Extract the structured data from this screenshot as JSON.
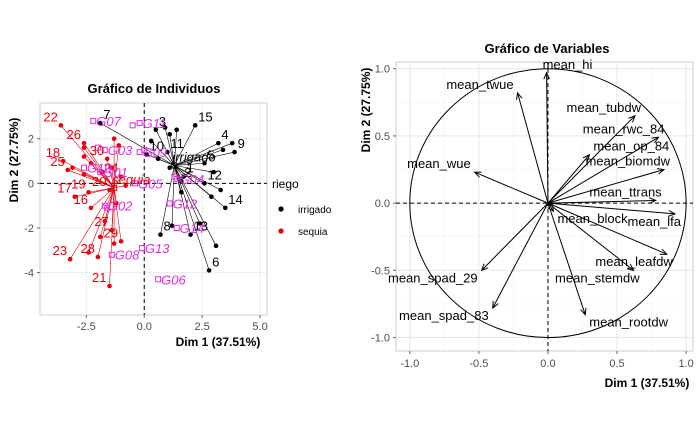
{
  "chart_data": [
    {
      "type": "scatter",
      "title": "Gráfico de Individuos",
      "xlabel": "Dim 1 (37.51%)",
      "ylabel": "Dim 2 (27.75%)",
      "xlim": [
        -4.5,
        5.3
      ],
      "ylim": [
        -5.9,
        3.6
      ],
      "xticks": [
        -2.5,
        0.0,
        2.5,
        5.0
      ],
      "xtick_labels": [
        "-2.5",
        "0.0",
        "2.5",
        "5.0"
      ],
      "yticks": [
        -4,
        -2,
        0,
        2
      ],
      "ytick_labels": [
        "-4",
        "-2",
        "0",
        "2"
      ],
      "grid": true,
      "legend": {
        "title": "riego",
        "placement": "right",
        "entries": [
          {
            "label": "irrigado",
            "color": "#000000"
          },
          {
            "label": "sequia",
            "color": "#e8000b"
          }
        ]
      },
      "irrigado": [
        {
          "label": "1",
          "x": 1.7,
          "y": 0.3
        },
        {
          "label": "2",
          "x": 1.6,
          "y": 0.1
        },
        {
          "label": "3",
          "x": 0.5,
          "y": 2.4
        },
        {
          "label": "4",
          "x": 3.2,
          "y": 1.8
        },
        {
          "label": "5",
          "x": 2.6,
          "y": 0.9
        },
        {
          "label": "6",
          "x": 2.8,
          "y": -3.9
        },
        {
          "label": "7",
          "x": -1.9,
          "y": 2.7
        },
        {
          "label": "8",
          "x": 0.7,
          "y": -2.3
        },
        {
          "label": "9",
          "x": 3.9,
          "y": 1.4
        },
        {
          "label": "10",
          "x": 0.1,
          "y": 1.3
        },
        {
          "label": "11",
          "x": 1.0,
          "y": 1.4
        },
        {
          "label": "12",
          "x": 2.6,
          "y": 0.0
        },
        {
          "label": "13",
          "x": 2.0,
          "y": -2.3
        },
        {
          "label": "14",
          "x": 3.5,
          "y": -1.1
        },
        {
          "label": "15",
          "x": 2.2,
          "y": 2.6
        },
        {
          "label": "",
          "x": 1.4,
          "y": 2.4
        },
        {
          "label": "",
          "x": 1.1,
          "y": 2.2
        },
        {
          "label": "",
          "x": 0.6,
          "y": 1.1
        },
        {
          "label": "",
          "x": 3.4,
          "y": 1.5
        },
        {
          "label": "",
          "x": 3.8,
          "y": 1.8
        },
        {
          "label": "",
          "x": 3.0,
          "y": 0.5
        },
        {
          "label": "",
          "x": 3.3,
          "y": -0.3
        },
        {
          "label": "",
          "x": 2.4,
          "y": -1.8
        },
        {
          "label": "",
          "x": 1.2,
          "y": -1.9
        },
        {
          "label": "",
          "x": 1.1,
          "y": 0.7
        },
        {
          "label": "",
          "x": 1.6,
          "y": -0.4
        },
        {
          "label": "",
          "x": 3.1,
          "y": -2.8
        },
        {
          "label": "",
          "x": 0.3,
          "y": 1.9
        },
        {
          "label": "",
          "x": 2.9,
          "y": -0.6
        },
        {
          "label": "",
          "x": 0.9,
          "y": 2.5
        }
      ],
      "sequia": [
        {
          "label": "16",
          "x": -2.3,
          "y": -1.1
        },
        {
          "label": "17",
          "x": -3.0,
          "y": -0.6
        },
        {
          "label": "18",
          "x": -3.5,
          "y": 1.0
        },
        {
          "label": "19",
          "x": -2.4,
          "y": -0.4
        },
        {
          "label": "20",
          "x": -1.5,
          "y": -0.3
        },
        {
          "label": "21",
          "x": -1.5,
          "y": -4.6
        },
        {
          "label": "22",
          "x": -3.6,
          "y": 2.6
        },
        {
          "label": "23",
          "x": -3.2,
          "y": -3.4
        },
        {
          "label": "24",
          "x": -1.0,
          "y": 0.3
        },
        {
          "label": "25",
          "x": -3.3,
          "y": 0.6
        },
        {
          "label": "26",
          "x": -2.6,
          "y": 1.8
        },
        {
          "label": "27",
          "x": -1.4,
          "y": -2.1
        },
        {
          "label": "28",
          "x": -2.0,
          "y": -3.3
        },
        {
          "label": "29",
          "x": -1.0,
          "y": -2.6
        },
        {
          "label": "30",
          "x": -1.6,
          "y": 1.1
        },
        {
          "label": "",
          "x": -2.6,
          "y": 1.6
        },
        {
          "label": "",
          "x": -2.6,
          "y": 1.2
        },
        {
          "label": "",
          "x": -1.8,
          "y": 0.5
        },
        {
          "label": "",
          "x": -1.2,
          "y": -0.9
        },
        {
          "label": "",
          "x": -1.7,
          "y": -1.7
        },
        {
          "label": "",
          "x": -1.3,
          "y": -2.7
        },
        {
          "label": "",
          "x": -1.9,
          "y": -2.4
        },
        {
          "label": "",
          "x": -2.4,
          "y": -3.1
        },
        {
          "label": "",
          "x": -2.6,
          "y": 0.4
        },
        {
          "label": "",
          "x": -3.1,
          "y": 0.7
        },
        {
          "label": "",
          "x": -1.4,
          "y": 0.7
        },
        {
          "label": "",
          "x": -0.8,
          "y": -0.1
        },
        {
          "label": "",
          "x": -2.3,
          "y": 0.9
        },
        {
          "label": "",
          "x": -1.3,
          "y": 2.0
        },
        {
          "label": "",
          "x": -1.1,
          "y": 1.7
        }
      ],
      "genotypes": [
        {
          "label": "G01",
          "x": -1.9,
          "y": 0.5
        },
        {
          "label": "G02",
          "x": -1.7,
          "y": -1.0
        },
        {
          "label": "G03",
          "x": -1.7,
          "y": 1.5
        },
        {
          "label": "G04",
          "x": 1.4,
          "y": 0.2
        },
        {
          "label": "G05",
          "x": -0.4,
          "y": 0.0
        },
        {
          "label": "G06",
          "x": 0.6,
          "y": -4.3
        },
        {
          "label": "G07",
          "x": -2.2,
          "y": 2.8
        },
        {
          "label": "G08",
          "x": -1.4,
          "y": -3.2
        },
        {
          "label": "G09",
          "x": -0.2,
          "y": 1.4
        },
        {
          "label": "G10",
          "x": -2.6,
          "y": 0.7
        },
        {
          "label": "G11",
          "x": -0.2,
          "y": 2.7
        },
        {
          "label": "G12",
          "x": 1.1,
          "y": -0.9
        },
        {
          "label": "G13",
          "x": -0.1,
          "y": -2.9
        },
        {
          "label": "G14",
          "x": 1.4,
          "y": -2.0
        },
        {
          "label": "",
          "x": 1.3,
          "y": 0.3
        },
        {
          "label": "",
          "x": 0.0,
          "y": 1.5
        },
        {
          "label": "",
          "x": -0.5,
          "y": 2.6
        },
        {
          "label": "",
          "x": -1.6,
          "y": -1.1
        },
        {
          "label": "",
          "x": -2.0,
          "y": 1.6
        }
      ],
      "centroids": [
        {
          "label": "irrigado",
          "x": 1.3,
          "y": 0.8,
          "color": "#000000"
        },
        {
          "label": "sequia",
          "x": -1.3,
          "y": -0.2,
          "color": "#e8000b"
        }
      ]
    },
    {
      "type": "scatter",
      "subtype": "correlation-circle",
      "title": "Gráfico de Variables",
      "xlabel": "Dim 1 (37.51%)",
      "ylabel": "Dim 2 (27.75%)",
      "xlim": [
        -1.1,
        1.05
      ],
      "ylim": [
        -1.1,
        1.05
      ],
      "xticks": [
        -1.0,
        -0.5,
        0.0,
        0.5,
        1.0
      ],
      "xtick_labels": [
        "-1.0",
        "-0.5",
        "0.0",
        "0.5",
        "1.0"
      ],
      "yticks": [
        -1.0,
        -0.5,
        0.0,
        0.5,
        1.0
      ],
      "ytick_labels": [
        "-1.0",
        "-0.5",
        "0.0",
        "0.5",
        "1.0"
      ],
      "grid": true,
      "variables": [
        {
          "name": "mean_hi",
          "x": -0.01,
          "y": 0.97
        },
        {
          "name": "mean_twue",
          "x": -0.22,
          "y": 0.82
        },
        {
          "name": "mean_tubdw",
          "x": 0.63,
          "y": 0.65
        },
        {
          "name": "mean_rwc_84",
          "x": 0.8,
          "y": 0.49
        },
        {
          "name": "mean_op_84",
          "x": 0.3,
          "y": 0.36
        },
        {
          "name": "mean_biomdw",
          "x": 0.84,
          "y": 0.25
        },
        {
          "name": "mean_ttrans",
          "x": 0.78,
          "y": 0.02
        },
        {
          "name": "mean_lfa",
          "x": 0.92,
          "y": -0.08
        },
        {
          "name": "mean_wue",
          "x": -0.53,
          "y": 0.23
        },
        {
          "name": "mean_block",
          "x": 0.04,
          "y": -0.06
        },
        {
          "name": "mean_leafdw",
          "x": 0.86,
          "y": -0.38
        },
        {
          "name": "mean_spad_29",
          "x": -0.48,
          "y": -0.5
        },
        {
          "name": "mean_stemdw",
          "x": 0.62,
          "y": -0.5
        },
        {
          "name": "mean_spad_83",
          "x": -0.4,
          "y": -0.78
        },
        {
          "name": "mean_rootdw",
          "x": 0.27,
          "y": -0.83
        }
      ]
    }
  ]
}
